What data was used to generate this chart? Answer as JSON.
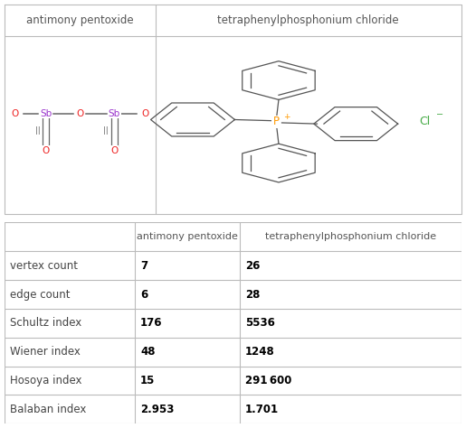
{
  "col_header_1": "antimony pentoxide",
  "col_header_2": "tetraphenylphosphonium chloride",
  "rows": [
    [
      "vertex count",
      "7",
      "26"
    ],
    [
      "edge count",
      "6",
      "28"
    ],
    [
      "Schultz index",
      "176",
      "5536"
    ],
    [
      "Wiener index",
      "48",
      "1248"
    ],
    [
      "Hosoya index",
      "15",
      "291 600"
    ],
    [
      "Balaban index",
      "2.953",
      "1.701"
    ]
  ],
  "image_bg": "#ffffff",
  "border_color": "#bbbbbb",
  "header_text_color": "#555555",
  "row_label_color": "#444444",
  "data_text_color": "#000000"
}
